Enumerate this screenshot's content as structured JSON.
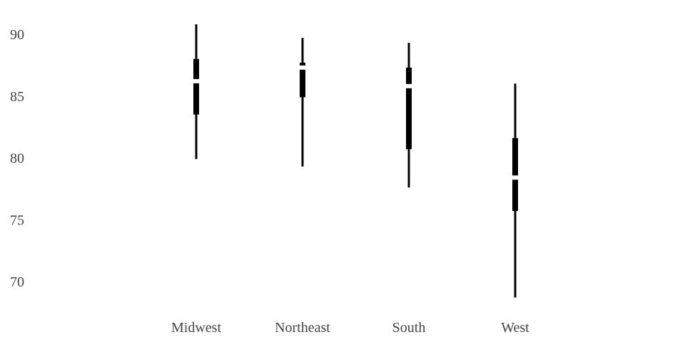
{
  "chart_data": {
    "type": "boxplot",
    "style": "tufte-minimal",
    "categories": [
      "Midwest",
      "Northeast",
      "South",
      "West"
    ],
    "boxes": [
      {
        "category": "Midwest",
        "whisker_low": 79.9,
        "q1": 83.5,
        "median": 86.2,
        "q3": 88.0,
        "whisker_high": 90.8
      },
      {
        "category": "Northeast",
        "whisker_low": 79.3,
        "q1": 84.9,
        "median": 87.3,
        "q3": 87.7,
        "whisker_high": 89.7
      },
      {
        "category": "South",
        "whisker_low": 77.6,
        "q1": 80.7,
        "median": 85.8,
        "q3": 87.3,
        "whisker_high": 89.3
      },
      {
        "category": "West",
        "whisker_low": 68.7,
        "q1": 75.7,
        "median": 78.4,
        "q3": 81.6,
        "whisker_high": 86.0
      }
    ],
    "y_ticks": [
      "70",
      "75",
      "80",
      "85",
      "90"
    ],
    "ylim": [
      68.0,
      91.5
    ],
    "grid": false,
    "mark_color": "#000000",
    "label_color": "#444444",
    "background": "#ffffff"
  }
}
